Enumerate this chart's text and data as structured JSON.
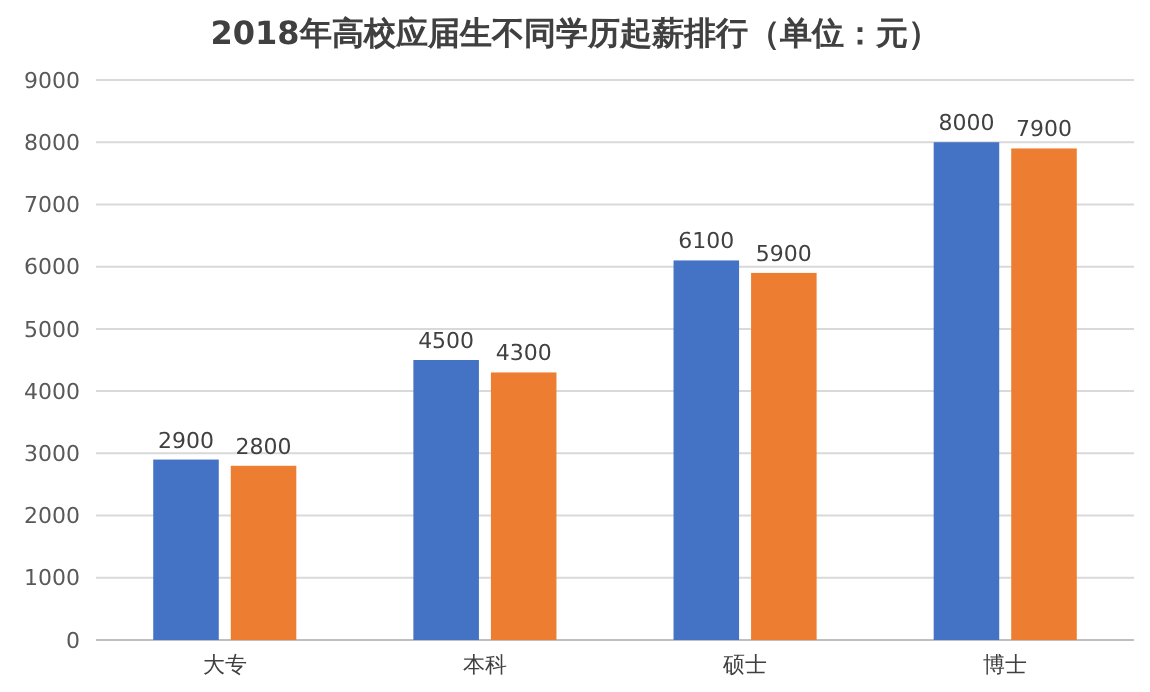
{
  "chart_data": {
    "type": "bar",
    "title": "2018年高校应届生不同学历起薪排行（单位：元）",
    "categories": [
      "大专",
      "本科",
      "硕士",
      "博士"
    ],
    "series": [
      {
        "color": "#4472c4",
        "values": [
          2900,
          4500,
          6100,
          8000
        ]
      },
      {
        "color": "#ed7d31",
        "values": [
          2800,
          4300,
          5900,
          7900
        ]
      }
    ],
    "ylim": [
      0,
      9000
    ],
    "yticks": [
      0,
      1000,
      2000,
      3000,
      4000,
      5000,
      6000,
      7000,
      8000,
      9000
    ],
    "grid": "y",
    "data_labels": true
  }
}
